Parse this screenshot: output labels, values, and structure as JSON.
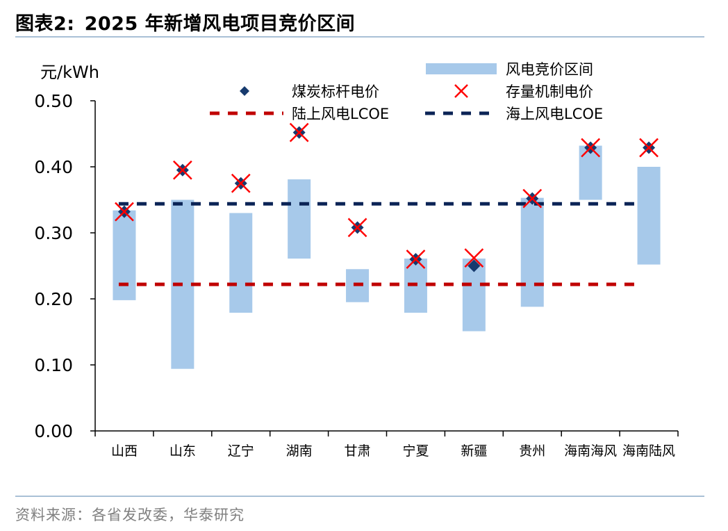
{
  "figure": {
    "label": "图表2:",
    "title": "2025 年新增风电项目竞价区间",
    "source": "资料来源：各省发改委，华泰研究"
  },
  "chart_data": {
    "type": "bar",
    "ylabel": "元/kWh",
    "ylim": [
      0,
      0.5
    ],
    "yticks": [
      "0.00",
      "0.10",
      "0.20",
      "0.30",
      "0.40",
      "0.50"
    ],
    "categories": [
      "山西",
      "山东",
      "辽宁",
      "湖南",
      "甘肃",
      "宁夏",
      "新疆",
      "贵州",
      "海南海风",
      "海南陆风"
    ],
    "legend": {
      "range": "风电竞价区间",
      "benchmark": "煤炭标杆电价",
      "existing": "存量机制电价",
      "onshore": "陆上风电LCOE",
      "offshore": "海上风电LCOE"
    },
    "series": [
      {
        "name": "风电竞价区间",
        "kind": "range",
        "low": [
          0.198,
          0.094,
          0.179,
          0.261,
          0.195,
          0.179,
          0.151,
          0.188,
          0.35,
          0.252
        ],
        "high": [
          0.334,
          0.35,
          0.33,
          0.381,
          0.245,
          0.261,
          0.261,
          0.353,
          0.432,
          0.4
        ]
      },
      {
        "name": "煤炭标杆电价",
        "kind": "diamond",
        "values": [
          0.332,
          0.395,
          0.375,
          0.452,
          0.308,
          0.26,
          0.25,
          0.352,
          0.429,
          0.429
        ]
      },
      {
        "name": "存量机制电价",
        "kind": "cross",
        "values": [
          0.332,
          0.395,
          0.375,
          0.452,
          0.308,
          0.26,
          0.262,
          0.352,
          0.429,
          0.429
        ]
      },
      {
        "name": "陆上风电LCOE",
        "kind": "hline",
        "value": 0.222
      },
      {
        "name": "海上风电LCOE",
        "kind": "hline",
        "value": 0.344
      }
    ],
    "colors": {
      "range": "#a7c9ea",
      "diamond": "#173a6e",
      "cross": "#ff0000",
      "onshore": "#c00000",
      "offshore": "#0b2456",
      "axis": "#000000"
    },
    "grid": false,
    "legend_position": "top"
  }
}
